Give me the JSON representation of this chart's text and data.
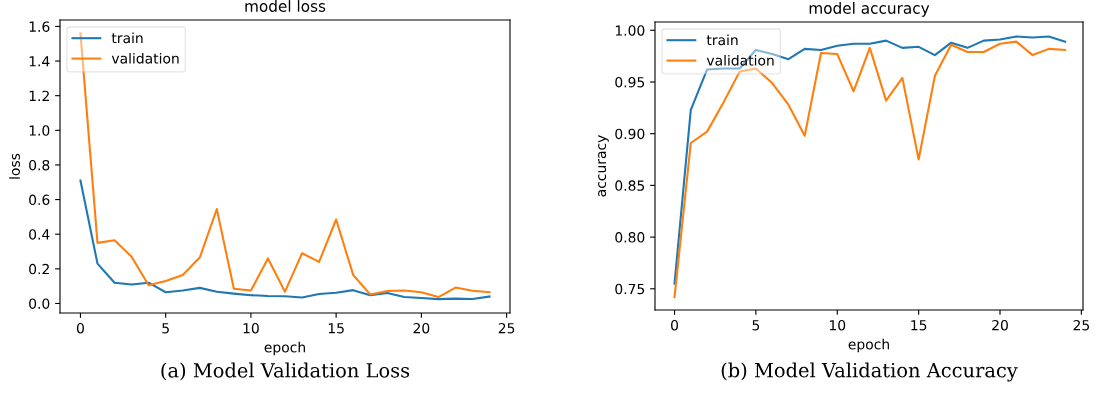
{
  "chart_data": [
    {
      "type": "line",
      "title": "model loss",
      "xlabel": "epoch",
      "ylabel": "loss",
      "x": [
        0,
        1,
        2,
        3,
        4,
        5,
        6,
        7,
        8,
        9,
        10,
        11,
        12,
        13,
        14,
        15,
        16,
        17,
        18,
        19,
        20,
        21,
        22,
        23,
        24
      ],
      "series": [
        {
          "name": "train",
          "color": "#1f77b4",
          "values": [
            0.71,
            0.23,
            0.12,
            0.11,
            0.12,
            0.065,
            0.075,
            0.09,
            0.068,
            0.057,
            0.048,
            0.043,
            0.042,
            0.035,
            0.055,
            0.062,
            0.077,
            0.048,
            0.06,
            0.037,
            0.032,
            0.025,
            0.028,
            0.026,
            0.04
          ]
        },
        {
          "name": "validation",
          "color": "#ff7f0e",
          "values": [
            1.56,
            0.35,
            0.365,
            0.27,
            0.105,
            0.13,
            0.165,
            0.265,
            0.545,
            0.085,
            0.075,
            0.26,
            0.068,
            0.29,
            0.24,
            0.485,
            0.165,
            0.052,
            0.072,
            0.075,
            0.065,
            0.037,
            0.092,
            0.073,
            0.065
          ]
        }
      ],
      "xlim": [
        -1.2,
        25.2
      ],
      "xticks": [
        0,
        5,
        10,
        15,
        20,
        25
      ],
      "ylim": [
        -0.055,
        1.637
      ],
      "yticks": [
        {
          "value": 0,
          "label": "0.0"
        },
        0.2,
        0.4,
        0.6,
        0.8,
        {
          "value": 1,
          "label": "1.0"
        },
        1.2,
        1.4,
        1.6
      ],
      "legend": "top left",
      "grid": false,
      "marker": "none",
      "line_style": "solid",
      "annotations": [
        "(a) Model Validation Loss"
      ]
    },
    {
      "type": "line",
      "title": "model accuracy",
      "xlabel": "epoch",
      "ylabel": "accuracy",
      "x": [
        0,
        1,
        2,
        3,
        4,
        5,
        6,
        7,
        8,
        9,
        10,
        11,
        12,
        13,
        14,
        15,
        16,
        17,
        18,
        19,
        20,
        21,
        22,
        23,
        24
      ],
      "series": [
        {
          "name": "train",
          "color": "#1f77b4",
          "values": [
            0.755,
            0.923,
            0.962,
            0.963,
            0.963,
            0.981,
            0.977,
            0.972,
            0.982,
            0.981,
            0.985,
            0.987,
            0.987,
            0.99,
            0.983,
            0.984,
            0.976,
            0.988,
            0.983,
            0.99,
            0.991,
            0.994,
            0.993,
            0.994,
            0.989
          ]
        },
        {
          "name": "validation",
          "color": "#ff7f0e",
          "values": [
            0.742,
            0.891,
            0.902,
            0.93,
            0.96,
            0.963,
            0.949,
            0.928,
            0.898,
            0.978,
            0.977,
            0.941,
            0.983,
            0.932,
            0.954,
            0.875,
            0.956,
            0.986,
            0.979,
            0.979,
            0.987,
            0.989,
            0.976,
            0.982,
            0.981
          ]
        }
      ],
      "xlim": [
        -1.2,
        25.1
      ],
      "xticks": [
        0,
        5,
        10,
        15,
        20,
        25
      ],
      "ylim": [
        0.7295,
        1.008
      ],
      "yticks": [
        {
          "value": 0.75,
          "label": "0.75"
        },
        {
          "value": 0.8,
          "label": "0.80"
        },
        {
          "value": 0.85,
          "label": "0.85"
        },
        {
          "value": 0.9,
          "label": "0.90"
        },
        {
          "value": 0.95,
          "label": "0.95"
        },
        {
          "value": 1.0,
          "label": "1.00"
        }
      ],
      "legend": "top left",
      "grid": false,
      "marker": "none",
      "line_style": "solid",
      "annotations": [
        "(b) Model Validation Accuracy"
      ]
    }
  ]
}
